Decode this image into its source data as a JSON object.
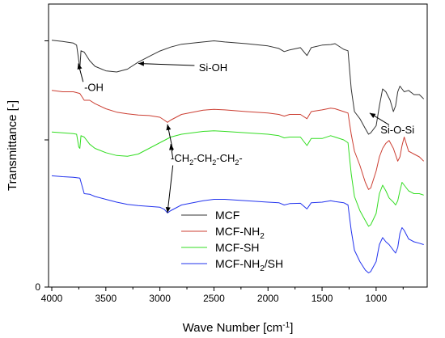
{
  "chart_data": {
    "type": "line",
    "title": "",
    "xlabel": "Wave Number [cm",
    "xlabel_sup": "-1",
    "xlabel_end": "]",
    "ylabel": "Transmittance [-]",
    "xlim": [
      4000,
      550
    ],
    "x_reversed": true,
    "ylim": [
      0,
      1
    ],
    "xticks": [
      4000,
      3500,
      3000,
      2500,
      2000,
      1500,
      1000
    ],
    "yticks": [
      {
        "value": 0,
        "label": "0"
      },
      {
        "value": 0.52,
        "label": ""
      },
      {
        "value": 0.87,
        "label": ""
      }
    ],
    "grid": false,
    "legend_position": "bottom-right",
    "series": [
      {
        "name": "MCF",
        "name_parts": [
          "MCF"
        ],
        "color": "#333333",
        "points": [
          [
            4000,
            0.872
          ],
          [
            3900,
            0.868
          ],
          [
            3800,
            0.862
          ],
          [
            3770,
            0.855
          ],
          [
            3750,
            0.8
          ],
          [
            3740,
            0.77
          ],
          [
            3730,
            0.835
          ],
          [
            3700,
            0.83
          ],
          [
            3650,
            0.8
          ],
          [
            3600,
            0.78
          ],
          [
            3500,
            0.764
          ],
          [
            3400,
            0.76
          ],
          [
            3300,
            0.77
          ],
          [
            3200,
            0.795
          ],
          [
            3100,
            0.815
          ],
          [
            3000,
            0.834
          ],
          [
            2900,
            0.848
          ],
          [
            2800,
            0.858
          ],
          [
            2600,
            0.866
          ],
          [
            2500,
            0.87
          ],
          [
            2400,
            0.866
          ],
          [
            2200,
            0.86
          ],
          [
            2000,
            0.852
          ],
          [
            1900,
            0.843
          ],
          [
            1850,
            0.832
          ],
          [
            1800,
            0.838
          ],
          [
            1700,
            0.846
          ],
          [
            1640,
            0.818
          ],
          [
            1600,
            0.846
          ],
          [
            1500,
            0.855
          ],
          [
            1420,
            0.857
          ],
          [
            1380,
            0.86
          ],
          [
            1340,
            0.85
          ],
          [
            1300,
            0.84
          ],
          [
            1260,
            0.835
          ],
          [
            1230,
            0.7
          ],
          [
            1200,
            0.62
          ],
          [
            1150,
            0.595
          ],
          [
            1100,
            0.56
          ],
          [
            1070,
            0.54
          ],
          [
            1050,
            0.545
          ],
          [
            1000,
            0.57
          ],
          [
            970,
            0.64
          ],
          [
            940,
            0.7
          ],
          [
            910,
            0.69
          ],
          [
            870,
            0.66
          ],
          [
            840,
            0.62
          ],
          [
            820,
            0.64
          ],
          [
            800,
            0.69
          ],
          [
            780,
            0.71
          ],
          [
            760,
            0.7
          ],
          [
            740,
            0.69
          ],
          [
            700,
            0.695
          ],
          [
            650,
            0.68
          ],
          [
            600,
            0.68
          ],
          [
            560,
            0.665
          ]
        ]
      },
      {
        "name": "MCF-NH2",
        "name_parts": [
          "MCF-NH",
          "2"
        ],
        "color": "#cc3f33",
        "points": [
          [
            4000,
            0.695
          ],
          [
            3900,
            0.69
          ],
          [
            3800,
            0.69
          ],
          [
            3740,
            0.684
          ],
          [
            3700,
            0.66
          ],
          [
            3650,
            0.66
          ],
          [
            3600,
            0.648
          ],
          [
            3500,
            0.63
          ],
          [
            3400,
            0.618
          ],
          [
            3300,
            0.612
          ],
          [
            3200,
            0.608
          ],
          [
            3100,
            0.606
          ],
          [
            3000,
            0.6
          ],
          [
            2960,
            0.59
          ],
          [
            2930,
            0.582
          ],
          [
            2900,
            0.59
          ],
          [
            2850,
            0.6
          ],
          [
            2800,
            0.61
          ],
          [
            2600,
            0.625
          ],
          [
            2500,
            0.628
          ],
          [
            2400,
            0.626
          ],
          [
            2200,
            0.62
          ],
          [
            2000,
            0.615
          ],
          [
            1900,
            0.61
          ],
          [
            1850,
            0.604
          ],
          [
            1800,
            0.61
          ],
          [
            1700,
            0.61
          ],
          [
            1640,
            0.595
          ],
          [
            1600,
            0.62
          ],
          [
            1500,
            0.626
          ],
          [
            1420,
            0.632
          ],
          [
            1380,
            0.63
          ],
          [
            1300,
            0.62
          ],
          [
            1260,
            0.615
          ],
          [
            1230,
            0.54
          ],
          [
            1200,
            0.48
          ],
          [
            1150,
            0.43
          ],
          [
            1100,
            0.37
          ],
          [
            1070,
            0.345
          ],
          [
            1050,
            0.35
          ],
          [
            1000,
            0.41
          ],
          [
            970,
            0.46
          ],
          [
            940,
            0.49
          ],
          [
            910,
            0.508
          ],
          [
            880,
            0.518
          ],
          [
            840,
            0.49
          ],
          [
            800,
            0.445
          ],
          [
            780,
            0.46
          ],
          [
            760,
            0.5
          ],
          [
            740,
            0.53
          ],
          [
            700,
            0.48
          ],
          [
            650,
            0.47
          ],
          [
            600,
            0.46
          ],
          [
            560,
            0.445
          ]
        ]
      },
      {
        "name": "MCF-SH",
        "name_parts": [
          "MCF-SH"
        ],
        "color": "#33dd22",
        "points": [
          [
            4000,
            0.548
          ],
          [
            3900,
            0.545
          ],
          [
            3800,
            0.542
          ],
          [
            3770,
            0.54
          ],
          [
            3750,
            0.495
          ],
          [
            3740,
            0.49
          ],
          [
            3730,
            0.535
          ],
          [
            3700,
            0.53
          ],
          [
            3650,
            0.505
          ],
          [
            3600,
            0.49
          ],
          [
            3500,
            0.475
          ],
          [
            3400,
            0.465
          ],
          [
            3300,
            0.462
          ],
          [
            3200,
            0.47
          ],
          [
            3100,
            0.49
          ],
          [
            3000,
            0.51
          ],
          [
            2900,
            0.53
          ],
          [
            2800,
            0.54
          ],
          [
            2600,
            0.55
          ],
          [
            2500,
            0.552
          ],
          [
            2400,
            0.55
          ],
          [
            2200,
            0.545
          ],
          [
            2000,
            0.54
          ],
          [
            1900,
            0.535
          ],
          [
            1850,
            0.527
          ],
          [
            1800,
            0.53
          ],
          [
            1700,
            0.53
          ],
          [
            1640,
            0.5
          ],
          [
            1600,
            0.525
          ],
          [
            1500,
            0.525
          ],
          [
            1420,
            0.535
          ],
          [
            1380,
            0.53
          ],
          [
            1300,
            0.52
          ],
          [
            1260,
            0.51
          ],
          [
            1230,
            0.4
          ],
          [
            1200,
            0.32
          ],
          [
            1150,
            0.27
          ],
          [
            1100,
            0.235
          ],
          [
            1070,
            0.215
          ],
          [
            1050,
            0.22
          ],
          [
            1000,
            0.26
          ],
          [
            970,
            0.33
          ],
          [
            940,
            0.36
          ],
          [
            910,
            0.34
          ],
          [
            880,
            0.315
          ],
          [
            840,
            0.3
          ],
          [
            820,
            0.29
          ],
          [
            800,
            0.305
          ],
          [
            780,
            0.34
          ],
          [
            760,
            0.37
          ],
          [
            740,
            0.36
          ],
          [
            700,
            0.34
          ],
          [
            650,
            0.33
          ],
          [
            600,
            0.33
          ],
          [
            560,
            0.325
          ]
        ]
      },
      {
        "name": "MCF-NH2/SH",
        "name_parts": [
          "MCF-NH",
          "2",
          "/SH"
        ],
        "color": "#2233ee",
        "points": [
          [
            4000,
            0.393
          ],
          [
            3900,
            0.39
          ],
          [
            3800,
            0.388
          ],
          [
            3740,
            0.385
          ],
          [
            3700,
            0.33
          ],
          [
            3650,
            0.328
          ],
          [
            3600,
            0.32
          ],
          [
            3500,
            0.31
          ],
          [
            3400,
            0.3
          ],
          [
            3300,
            0.292
          ],
          [
            3200,
            0.288
          ],
          [
            3100,
            0.285
          ],
          [
            3000,
            0.282
          ],
          [
            2960,
            0.275
          ],
          [
            2930,
            0.262
          ],
          [
            2900,
            0.27
          ],
          [
            2850,
            0.28
          ],
          [
            2800,
            0.29
          ],
          [
            2600,
            0.305
          ],
          [
            2500,
            0.31
          ],
          [
            2400,
            0.31
          ],
          [
            2200,
            0.305
          ],
          [
            2000,
            0.3
          ],
          [
            1900,
            0.298
          ],
          [
            1850,
            0.29
          ],
          [
            1800,
            0.295
          ],
          [
            1700,
            0.296
          ],
          [
            1640,
            0.276
          ],
          [
            1600,
            0.298
          ],
          [
            1500,
            0.3
          ],
          [
            1420,
            0.305
          ],
          [
            1380,
            0.302
          ],
          [
            1300,
            0.298
          ],
          [
            1260,
            0.29
          ],
          [
            1230,
            0.2
          ],
          [
            1200,
            0.13
          ],
          [
            1150,
            0.09
          ],
          [
            1100,
            0.06
          ],
          [
            1070,
            0.05
          ],
          [
            1050,
            0.055
          ],
          [
            1000,
            0.09
          ],
          [
            970,
            0.15
          ],
          [
            940,
            0.175
          ],
          [
            910,
            0.16
          ],
          [
            880,
            0.15
          ],
          [
            840,
            0.13
          ],
          [
            820,
            0.12
          ],
          [
            800,
            0.14
          ],
          [
            780,
            0.19
          ],
          [
            760,
            0.21
          ],
          [
            740,
            0.2
          ],
          [
            700,
            0.17
          ],
          [
            650,
            0.16
          ],
          [
            600,
            0.155
          ],
          [
            560,
            0.15
          ]
        ]
      }
    ],
    "annotations": [
      {
        "id": "oh",
        "text_parts": [
          "-OH"
        ],
        "text_x": 3700,
        "text_y": 0.705,
        "arrow_from": [
          3710,
          0.725
        ],
        "arrow_to": [
          3755,
          0.79
        ]
      },
      {
        "id": "sioh",
        "text_parts": [
          "Si-OH"
        ],
        "text_x": 2640,
        "text_y": 0.775,
        "arrow_from": [
          2680,
          0.783
        ],
        "arrow_to": [
          3200,
          0.79
        ]
      },
      {
        "id": "siosi",
        "text_parts": [
          "Si-O-Si"
        ],
        "text_x": 960,
        "text_y": 0.555,
        "arrow_from": [
          880,
          0.573
        ],
        "arrow_to": [
          1060,
          0.615
        ]
      },
      {
        "id": "ch2",
        "text_parts": [
          "-CH",
          "2",
          "-CH",
          "2",
          "-CH",
          "2",
          "-"
        ],
        "text_x": 2900,
        "text_y": 0.455,
        "arrows": [
          {
            "from": [
              2880,
              0.482
            ],
            "to": [
              2930,
              0.575
            ]
          },
          {
            "from": [
              2880,
              0.455
            ],
            "to": [
              2900,
              0.505
            ]
          },
          {
            "from": [
              2880,
              0.43
            ],
            "to": [
              2930,
              0.262
            ]
          }
        ]
      }
    ]
  }
}
